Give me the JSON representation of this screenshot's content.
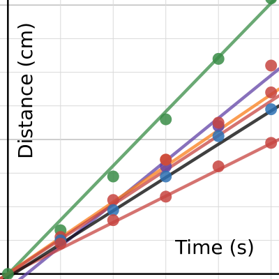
{
  "chart_data": {
    "type": "scatter",
    "title": "",
    "xlabel": "Time (s)",
    "ylabel": "Distance (cm)",
    "xlim": [
      -0.15,
      5.15
    ],
    "ylim": [
      -0.15,
      8.15
    ],
    "x_grid_step": 1,
    "y_grid_major_step": 4,
    "y_grid_minor_step": 1,
    "grid": true,
    "colors": {
      "green": "#388c46",
      "purple": "#6042a6",
      "orange": "#fa7e19",
      "red": "#c74440",
      "blue": "#2d70b3",
      "black": "#000000",
      "background": "#ffffff",
      "grid": "#d9d9d9",
      "axis": "#000000"
    },
    "series": [
      {
        "color": "green",
        "points": [
          [
            0,
            0
          ],
          [
            1,
            1.3
          ],
          [
            2,
            2.9
          ],
          [
            3,
            4.6
          ],
          [
            4,
            6.4
          ],
          [
            5,
            8.2
          ]
        ],
        "fit": [
          [
            -0.15,
            -0.25
          ],
          [
            5.15,
            8.3
          ]
        ]
      },
      {
        "color": "purple",
        "points": [
          [
            3,
            3.2
          ],
          [
            4,
            4.4
          ]
        ],
        "fit": [
          [
            0,
            -0.45
          ],
          [
            5.15,
            6.1
          ]
        ]
      },
      {
        "color": "orange",
        "points": [
          [
            3,
            3.4
          ]
        ],
        "fit": [
          [
            -0.15,
            -0.15
          ],
          [
            5.15,
            5.5
          ]
        ]
      },
      {
        "color": "red",
        "points": [
          [
            1,
            1.1
          ],
          [
            2,
            2.2
          ],
          [
            3,
            3.4
          ],
          [
            4,
            4.5
          ],
          [
            5,
            6.2
          ],
          [
            5,
            5.4
          ]
        ],
        "fit": [
          [
            -0.15,
            -0.15
          ],
          [
            5.15,
            5.3
          ]
        ]
      },
      {
        "color": "blue",
        "points": [
          [
            1,
            1.0
          ],
          [
            2,
            1.9
          ],
          [
            3,
            2.9
          ],
          [
            4,
            4.1
          ],
          [
            5,
            4.9
          ]
        ],
        "fit": null
      },
      {
        "color": "red",
        "points": [
          [
            1,
            0.9
          ],
          [
            2,
            1.6
          ],
          [
            3,
            2.3
          ],
          [
            4,
            3.2
          ],
          [
            5,
            3.9
          ]
        ],
        "fit": [
          [
            -0.15,
            -0.15
          ],
          [
            5.15,
            4.0
          ]
        ]
      },
      {
        "color": "black",
        "points": [],
        "fit": [
          [
            -0.15,
            -0.25
          ],
          [
            5.15,
            5.0
          ]
        ]
      }
    ]
  }
}
